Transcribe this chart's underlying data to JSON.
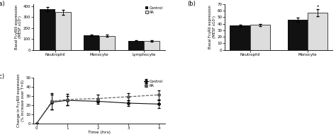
{
  "panel_a": {
    "title": "(a)",
    "categories": [
      "Neutrophil",
      "Monocyte",
      "Lymphocyte"
    ],
    "control_values": [
      375,
      135,
      85
    ],
    "ra_values": [
      345,
      130,
      80
    ],
    "control_errors": [
      20,
      8,
      5
    ],
    "ra_errors": [
      25,
      10,
      6
    ],
    "ylabel": "Basal FcγRIII expression\n(MESF x10³)",
    "ylim": [
      0,
      420
    ],
    "yticks": [
      0,
      100,
      200,
      300,
      400
    ],
    "bar_width": 0.35,
    "control_color": "#111111",
    "ra_color": "#dddddd",
    "legend_labels": [
      "Control",
      "RA"
    ]
  },
  "panel_b": {
    "title": "(b)",
    "categories": [
      "Neutrophil",
      "Monocyte"
    ],
    "control_values": [
      37,
      46
    ],
    "ra_values": [
      38,
      57
    ],
    "control_errors": [
      2,
      3
    ],
    "ra_errors": [
      2,
      5
    ],
    "ylabel": "Basal FcγRII expression\n(MESF x10³)",
    "ylim": [
      0,
      70
    ],
    "yticks": [
      0,
      10,
      20,
      30,
      40,
      50,
      60,
      70
    ],
    "bar_width": 0.35,
    "control_color": "#111111",
    "ra_color": "#dddddd",
    "asterisk_monocyte": true
  },
  "panel_c": {
    "title": "(c)",
    "time": [
      0,
      0.5,
      1,
      2,
      3,
      4
    ],
    "control_values": [
      0,
      23,
      25,
      24,
      22,
      21
    ],
    "ra_values": [
      0,
      24,
      26,
      27,
      29,
      31
    ],
    "control_errors": [
      0,
      8,
      5,
      3,
      3,
      4
    ],
    "ra_errors": [
      0,
      9,
      6,
      4,
      4,
      5
    ],
    "xlabel": "Time (hrs)",
    "ylabel": "Change in FcγRIII expression\n(% increase over T=0)",
    "ylim": [
      0,
      50
    ],
    "yticks": [
      0,
      10,
      20,
      30,
      40,
      50
    ],
    "xlim": [
      -0.1,
      4.2
    ],
    "control_color": "#111111",
    "ra_color": "#555555",
    "legend_labels": [
      "Control",
      "RA"
    ]
  }
}
